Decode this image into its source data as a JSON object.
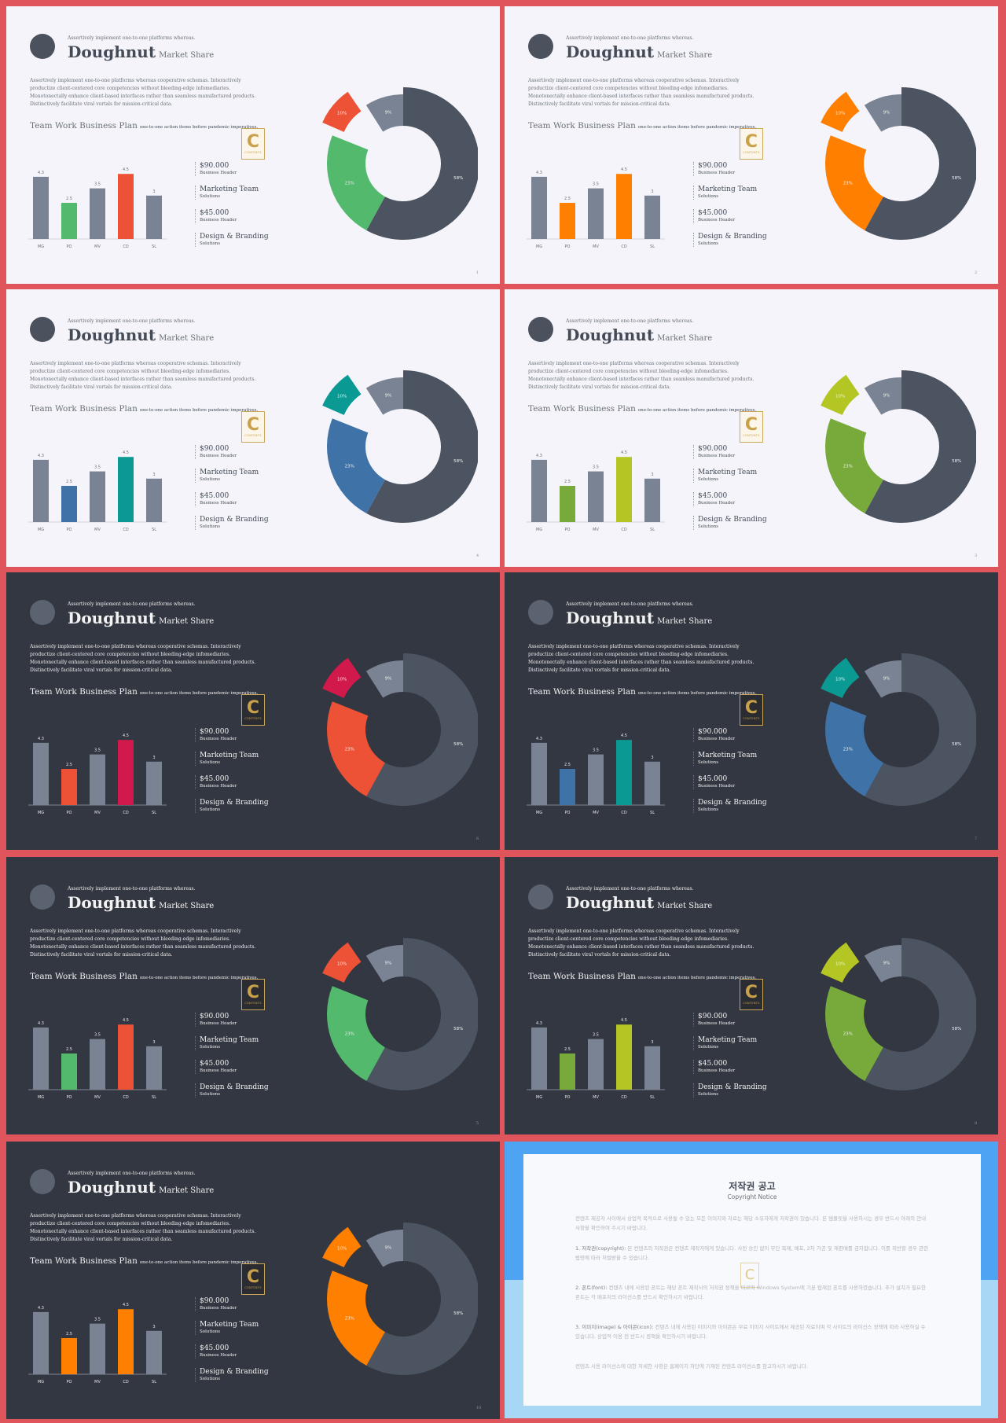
{
  "slide_text": {
    "subtitle": "Assertively implement one-to-one platforms whereas.",
    "title": "Doughnut",
    "title_sub": "Market Share",
    "body": "Assertively implement one-to-one platforms whereas cooperative schemas. Interactively productize client-centered core competencies without bleeding-edge infomediaries. Monotonectally enhance client-based interfaces rather than seamless manufactured products. Distinctively facilitate viral vortals for mission-critical data.",
    "plan_title": "Team Work Business Plan",
    "plan_sub": "one-to-one action items before pandemic imperatives.",
    "badge_letter": "C",
    "badge_word": "CONTENTS"
  },
  "legend": [
    {
      "big": "$90.000",
      "small": "Business Header"
    },
    {
      "big": "Marketing Team",
      "small": "Solutions"
    },
    {
      "big": "$45.000",
      "small": "Business Header"
    },
    {
      "big": "Design & Branding",
      "small": "Solutions"
    }
  ],
  "chart_data": {
    "type": "bar",
    "categories": [
      "MG",
      "PO",
      "MV",
      "CD",
      "SL"
    ],
    "values": [
      4.3,
      2.5,
      3.5,
      4.5,
      3
    ],
    "value_labels": [
      "4.3",
      "2.5",
      "3.5",
      "4.5",
      "3"
    ],
    "ylim": [
      0,
      5
    ],
    "doughnut": {
      "type": "pie",
      "slices": [
        {
          "label": "58%",
          "value": 58
        },
        {
          "label": "23%",
          "value": 23
        },
        {
          "label": "10%",
          "value": 10
        },
        {
          "label": "9%",
          "value": 9
        }
      ]
    }
  },
  "slides": [
    {
      "theme": "light",
      "accent1": "#52b96d",
      "accent2": "#ee5236",
      "page": "1"
    },
    {
      "theme": "light",
      "accent1": "#ff7f00",
      "accent2": "#ff7f00",
      "page": "2"
    },
    {
      "theme": "light",
      "accent1": "#3f73a8",
      "accent2": "#0a9a93",
      "page": "4"
    },
    {
      "theme": "light",
      "accent1": "#77aa3a",
      "accent2": "#b3c623",
      "page": "3"
    },
    {
      "theme": "dark",
      "accent1": "#ee5236",
      "accent2": "#d11a4b",
      "page": "6"
    },
    {
      "theme": "dark",
      "accent1": "#3f73a8",
      "accent2": "#0a9a93",
      "page": "7"
    },
    {
      "theme": "dark",
      "accent1": "#52b96d",
      "accent2": "#ee5236",
      "page": "5"
    },
    {
      "theme": "dark",
      "accent1": "#77aa3a",
      "accent2": "#b3c623",
      "page": "8"
    },
    {
      "theme": "dark",
      "accent1": "#ff7f00",
      "accent2": "#ff7f00",
      "page": "10"
    }
  ],
  "notice": {
    "title_ko": "저작권 공고",
    "title_en": "Copyright Notice",
    "p1": "컨텐츠 제공자 사이에서 상업적 목적으로 사용될 수 있는 모든 이미지와 자료는 해당 소유자에게 저작권이 있습니다. 본 템플릿을 사용하시는 경우 반드시 아래의 안내 사항을 확인하여 주시기 바랍니다.",
    "p2_head": "1. 저작권(copyright):",
    "p2": "본 컨텐츠의 저작권은 컨텐츠 제작자에게 있습니다. 사전 승인 없이 무단 복제, 배포, 2차 가공 및 재판매를 금지합니다. 이를 위반할 경우 관련 법령에 따라 처벌받을 수 있습니다.",
    "p3_head": "2. 폰트(font):",
    "p3": "컨텐츠 내에 사용된 폰트는 해당 폰트 제작사의 저작권 정책을 따르며 Windows System에 기본 탑재된 폰트를 사용하였습니다. 추가 설치가 필요한 폰트는 각 배포처의 라이선스를 반드시 확인하시기 바랍니다.",
    "p4_head": "3. 이미지(image) & 아이콘(icon):",
    "p4": "컨텐츠 내에 사용된 이미지와 아이콘은 무료 이미지 사이트에서 제공된 자료이며 각 사이트의 라이선스 정책에 따라 사용하실 수 있습니다. 상업적 이용 전 반드시 정책을 확인하시기 바랍니다.",
    "p5": "컨텐츠 사용 라이선스에 대한 자세한 사항은 홈페이지 하단에 기재된 컨텐츠 라이선스를 참고하시기 바랍니다."
  }
}
